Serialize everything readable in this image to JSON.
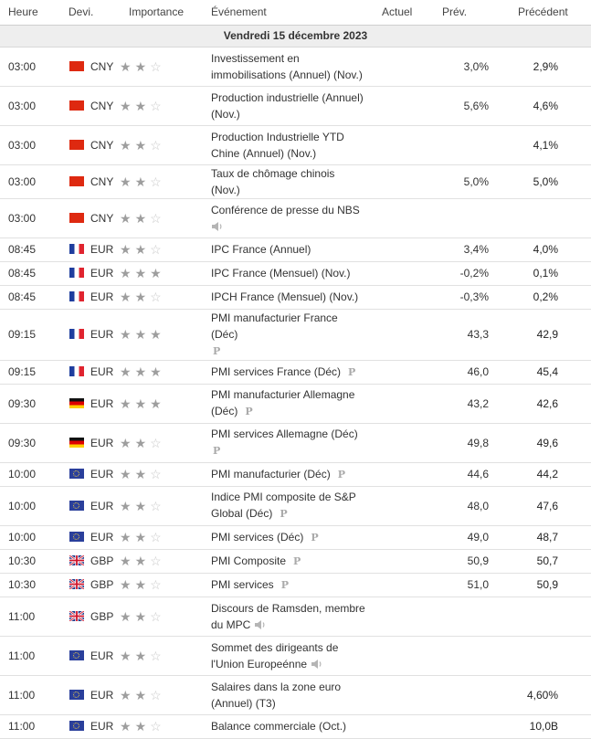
{
  "columns": {
    "time": "Heure",
    "currency": "Devi.",
    "importance": "Importance",
    "event": "Événement",
    "actual": "Actuel",
    "forecast": "Prév.",
    "previous": "Précédent"
  },
  "date_header": "Vendredi 15 décembre 2023",
  "colors": {
    "star_full": "#9e9e9e",
    "star_empty": "#c8c8c8",
    "date_row_bg": "#eeeeee",
    "badge": "#aaaaaa"
  },
  "rows": [
    {
      "time": "03:00",
      "flag": "cn",
      "currency": "CNY",
      "importance": 2,
      "event": "Investissement en immobilisations (Annuel) (Nov.)",
      "actual": "",
      "forecast": "3,0%",
      "previous": "2,9%",
      "badge": ""
    },
    {
      "time": "03:00",
      "flag": "cn",
      "currency": "CNY",
      "importance": 2,
      "event": "Production industrielle (Annuel) (Nov.)",
      "actual": "",
      "forecast": "5,6%",
      "previous": "4,6%",
      "badge": ""
    },
    {
      "time": "03:00",
      "flag": "cn",
      "currency": "CNY",
      "importance": 2,
      "event": "Production Industrielle YTD Chine (Annuel) (Nov.)",
      "actual": "",
      "forecast": "",
      "previous": "4,1%",
      "badge": ""
    },
    {
      "time": "03:00",
      "flag": "cn",
      "currency": "CNY",
      "importance": 2,
      "event": "Taux de chômage chinois (Nov.)",
      "actual": "",
      "forecast": "5,0%",
      "previous": "5,0%",
      "badge": ""
    },
    {
      "time": "03:00",
      "flag": "cn",
      "currency": "CNY",
      "importance": 2,
      "event": "Conférence de presse du NBS",
      "actual": "",
      "forecast": "",
      "previous": "",
      "badge": "speaker-block"
    },
    {
      "time": "08:45",
      "flag": "fr",
      "currency": "EUR",
      "importance": 2,
      "event": "IPC France (Annuel)",
      "actual": "",
      "forecast": "3,4%",
      "previous": "4,0%",
      "badge": ""
    },
    {
      "time": "08:45",
      "flag": "fr",
      "currency": "EUR",
      "importance": 3,
      "event": "IPC France (Mensuel) (Nov.)",
      "actual": "",
      "forecast": "-0,2%",
      "previous": "0,1%",
      "badge": ""
    },
    {
      "time": "08:45",
      "flag": "fr",
      "currency": "EUR",
      "importance": 2,
      "event": "IPCH France (Mensuel) (Nov.)",
      "actual": "",
      "forecast": "-0,3%",
      "previous": "0,2%",
      "badge": ""
    },
    {
      "time": "09:15",
      "flag": "fr",
      "currency": "EUR",
      "importance": 3,
      "event": "PMI manufacturier France (Déc)",
      "actual": "",
      "forecast": "43,3",
      "previous": "42,9",
      "badge": "p-block"
    },
    {
      "time": "09:15",
      "flag": "fr",
      "currency": "EUR",
      "importance": 3,
      "event": "PMI services France (Déc)",
      "actual": "",
      "forecast": "46,0",
      "previous": "45,4",
      "badge": "p"
    },
    {
      "time": "09:30",
      "flag": "de",
      "currency": "EUR",
      "importance": 3,
      "event": "PMI manufacturier Allemagne (Déc)",
      "actual": "",
      "forecast": "43,2",
      "previous": "42,6",
      "badge": "p"
    },
    {
      "time": "09:30",
      "flag": "de",
      "currency": "EUR",
      "importance": 2,
      "event": "PMI services Allemagne (Déc)",
      "actual": "",
      "forecast": "49,8",
      "previous": "49,6",
      "badge": "p-block"
    },
    {
      "time": "10:00",
      "flag": "eu",
      "currency": "EUR",
      "importance": 2,
      "event": "PMI manufacturier (Déc)",
      "actual": "",
      "forecast": "44,6",
      "previous": "44,2",
      "badge": "p"
    },
    {
      "time": "10:00",
      "flag": "eu",
      "currency": "EUR",
      "importance": 2,
      "event": "Indice PMI composite de S&P Global (Déc)",
      "actual": "",
      "forecast": "48,0",
      "previous": "47,6",
      "badge": "p"
    },
    {
      "time": "10:00",
      "flag": "eu",
      "currency": "EUR",
      "importance": 2,
      "event": "PMI services (Déc)",
      "actual": "",
      "forecast": "49,0",
      "previous": "48,7",
      "badge": "p"
    },
    {
      "time": "10:30",
      "flag": "gb",
      "currency": "GBP",
      "importance": 2,
      "event": "PMI Composite",
      "actual": "",
      "forecast": "50,9",
      "previous": "50,7",
      "badge": "p"
    },
    {
      "time": "10:30",
      "flag": "gb",
      "currency": "GBP",
      "importance": 2,
      "event": "PMI services",
      "actual": "",
      "forecast": "51,0",
      "previous": "50,9",
      "badge": "p"
    },
    {
      "time": "11:00",
      "flag": "gb",
      "currency": "GBP",
      "importance": 2,
      "event": "Discours de Ramsden, membre du MPC",
      "actual": "",
      "forecast": "",
      "previous": "",
      "badge": "speaker"
    },
    {
      "time": "11:00",
      "flag": "eu",
      "currency": "EUR",
      "importance": 2,
      "event": "Sommet des dirigeants de l'Union Europeénne",
      "actual": "",
      "forecast": "",
      "previous": "",
      "badge": "speaker"
    },
    {
      "time": "11:00",
      "flag": "eu",
      "currency": "EUR",
      "importance": 2,
      "event": "Salaires dans la zone euro (Annuel) (T3)",
      "actual": "",
      "forecast": "",
      "previous": "4,60%",
      "badge": ""
    },
    {
      "time": "11:00",
      "flag": "eu",
      "currency": "EUR",
      "importance": 2,
      "event": "Balance commerciale (Oct.)",
      "actual": "",
      "forecast": "",
      "previous": "10,0B",
      "badge": ""
    }
  ]
}
